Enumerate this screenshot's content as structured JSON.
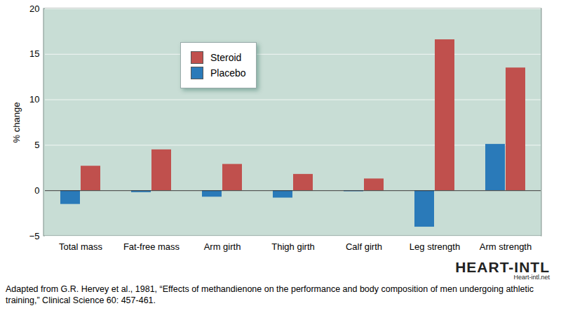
{
  "chart_data": {
    "type": "bar",
    "categories": [
      "Total mass",
      "Fat-free mass",
      "Arm girth",
      "Thigh girth",
      "Calf girth",
      "Leg strength",
      "Arm strength"
    ],
    "series": [
      {
        "name": "Steroid",
        "color": "#c0504d",
        "values": [
          2.7,
          4.5,
          2.9,
          1.8,
          1.3,
          16.6,
          13.5
        ]
      },
      {
        "name": "Placebo",
        "color": "#2a7ab9",
        "values": [
          -1.5,
          -0.2,
          -0.7,
          -0.8,
          -0.1,
          -4.0,
          5.1
        ]
      }
    ],
    "ylabel": "% change",
    "ylim": [
      -5,
      20
    ],
    "yticks": [
      -5,
      0,
      5,
      10,
      15,
      20
    ],
    "grid": true,
    "legend": "upper left",
    "caption": "Adapted from G.R. Hervey et al., 1981, “Effects of methandienone on the performance and body composition of men undergoing athletic training,” Clinical Science 60: 457-461.",
    "annotations": [
      "HEART-INTL",
      "Heart-intl.net"
    ]
  }
}
